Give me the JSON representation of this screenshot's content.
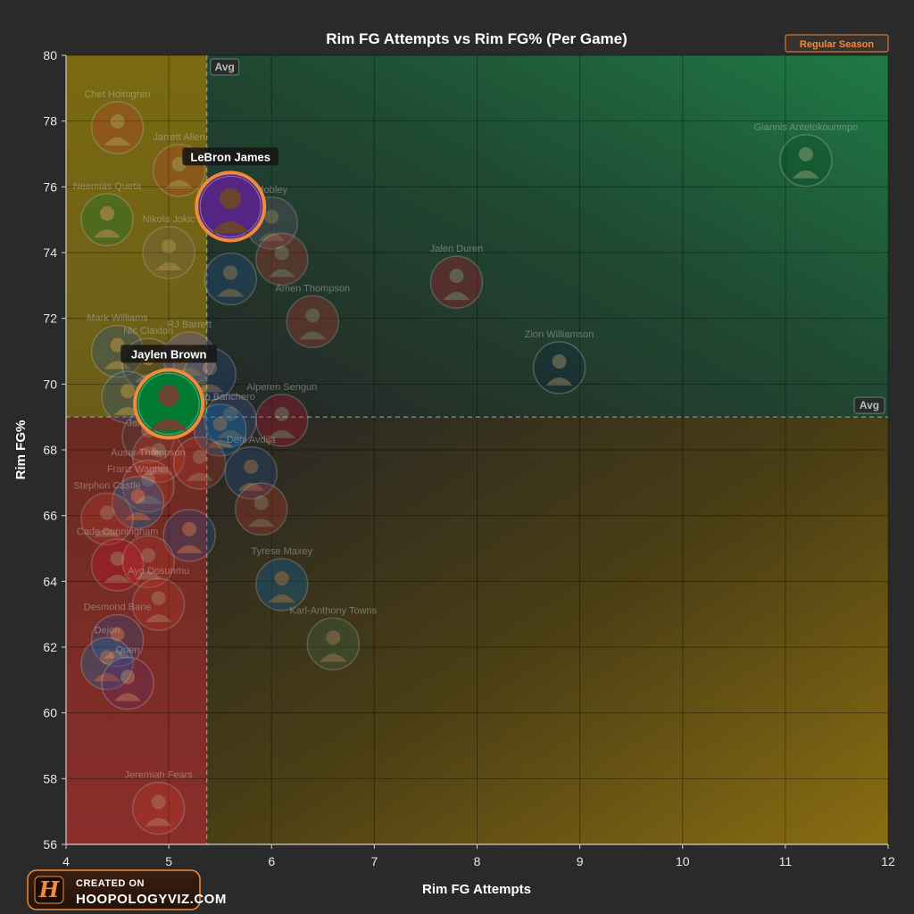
{
  "badge": {
    "label": "Regular Season"
  },
  "logo": {
    "mark": "H",
    "line1": "CREATED ON",
    "line2": "HOOPOLOGYVIZ.COM"
  },
  "colors": {
    "accent": "#f08a3c",
    "lakers": "#552583",
    "celtics": "#007a33"
  },
  "chart_data": {
    "type": "scatter",
    "title": "Rim FG Attempts vs Rim FG% (Per Game)",
    "xlabel": "Rim FG Attempts",
    "ylabel": "Rim FG%",
    "xlim": [
      4,
      12
    ],
    "ylim": [
      56,
      80
    ],
    "xticks": [
      4,
      5,
      6,
      7,
      8,
      9,
      10,
      11,
      12
    ],
    "yticks": [
      56,
      58,
      60,
      62,
      64,
      66,
      68,
      70,
      72,
      74,
      76,
      78,
      80
    ],
    "grid": true,
    "avg_label": "Avg",
    "avg_x": 5.37,
    "avg_y": 69.0,
    "points": [
      {
        "label": "Chet Holmgren",
        "x": 4.5,
        "y": 77.8,
        "color": "#c0392b"
      },
      {
        "label": "Jarrett Allen",
        "x": 5.1,
        "y": 76.5,
        "color": "#c0392b"
      },
      {
        "label": "Giannis Antetokounmpo",
        "x": 11.2,
        "y": 76.8,
        "color": "#00471b"
      },
      {
        "label": "Neemias Queta",
        "x": 4.4,
        "y": 75.0,
        "color": "#007a33"
      },
      {
        "label": "Nikola Jokic",
        "x": 5.0,
        "y": 74.0,
        "color": "#7a6a52"
      },
      {
        "label": "Mobley",
        "x": 6.0,
        "y": 74.9,
        "color": "#6a5a7a"
      },
      {
        "label": "",
        "x": 6.1,
        "y": 73.8,
        "color": "#c0392b"
      },
      {
        "label": "",
        "x": 5.6,
        "y": 73.2,
        "color": "#1d4f91"
      },
      {
        "label": "Amen Thompson",
        "x": 6.4,
        "y": 71.9,
        "color": "#c0392b"
      },
      {
        "label": "Jalen Duren",
        "x": 7.8,
        "y": 73.1,
        "color": "#c8102e"
      },
      {
        "label": "Mark Williams",
        "x": 4.5,
        "y": 71.0,
        "color": "#1d4f91"
      },
      {
        "label": "Nic Claxton",
        "x": 4.8,
        "y": 70.6,
        "color": "#333333"
      },
      {
        "label": "RJ Barrett",
        "x": 5.2,
        "y": 70.8,
        "color": "#6a5acd"
      },
      {
        "label": "",
        "x": 5.4,
        "y": 70.3,
        "color": "#1d4f91"
      },
      {
        "label": "Zion Williamson",
        "x": 8.8,
        "y": 70.5,
        "color": "#0c2340"
      },
      {
        "label": "Alperen Sengun",
        "x": 6.1,
        "y": 68.9,
        "color": "#c8102e"
      },
      {
        "label": "",
        "x": 4.6,
        "y": 69.6,
        "color": "#1d4f91"
      },
      {
        "label": "",
        "x": 5.6,
        "y": 68.9,
        "color": "#3a5a9a"
      },
      {
        "label": "Paolo Banchero",
        "x": 5.5,
        "y": 68.6,
        "color": "#0077c0"
      },
      {
        "label": "Dy",
        "x": 4.8,
        "y": 68.4,
        "color": "#444444"
      },
      {
        "label": "Jalen Williams",
        "x": 4.9,
        "y": 67.8,
        "color": "#c0392b"
      },
      {
        "label": "",
        "x": 5.3,
        "y": 67.6,
        "color": "#c0392b"
      },
      {
        "label": "Deni Avdija",
        "x": 5.8,
        "y": 67.3,
        "color": "#1d4f91"
      },
      {
        "label": "Ausar Thompson",
        "x": 4.8,
        "y": 66.9,
        "color": "#c0392b"
      },
      {
        "label": "Franz Wagner",
        "x": 4.7,
        "y": 66.4,
        "color": "#0077c0"
      },
      {
        "label": "",
        "x": 5.9,
        "y": 66.2,
        "color": "#c0392b"
      },
      {
        "label": "Stephon Castle",
        "x": 4.4,
        "y": 65.9,
        "color": "#c0392b"
      },
      {
        "label": "",
        "x": 5.2,
        "y": 65.4,
        "color": "#1d4f91"
      },
      {
        "label": "Tyrese Maxey",
        "x": 6.1,
        "y": 63.9,
        "color": "#006bb6"
      },
      {
        "label": "Cade Cunningham",
        "x": 4.5,
        "y": 64.5,
        "color": "#c8102e"
      },
      {
        "label": "",
        "x": 4.8,
        "y": 64.6,
        "color": "#c0392b"
      },
      {
        "label": "Ayo Dosunmu",
        "x": 4.9,
        "y": 63.3,
        "color": "#c0392b"
      },
      {
        "label": "Karl-Anthony Towns",
        "x": 6.6,
        "y": 62.1,
        "color": "#3a6a4a"
      },
      {
        "label": "Desmond Bane",
        "x": 4.5,
        "y": 62.2,
        "color": "#1d4f91"
      },
      {
        "label": "Dejon",
        "x": 4.4,
        "y": 61.5,
        "color": "#0077c0"
      },
      {
        "label": "Quen",
        "x": 4.6,
        "y": 60.9,
        "color": "#5a2a6a"
      },
      {
        "label": "Jeremiah Fears",
        "x": 4.9,
        "y": 57.1,
        "color": "#c0392b"
      }
    ],
    "highlighted": [
      {
        "label": "LeBron James",
        "x": 5.6,
        "y": 75.4,
        "color": "#552583"
      },
      {
        "label": "Jaylen Brown",
        "x": 5.0,
        "y": 69.4,
        "color": "#007a33"
      }
    ]
  }
}
